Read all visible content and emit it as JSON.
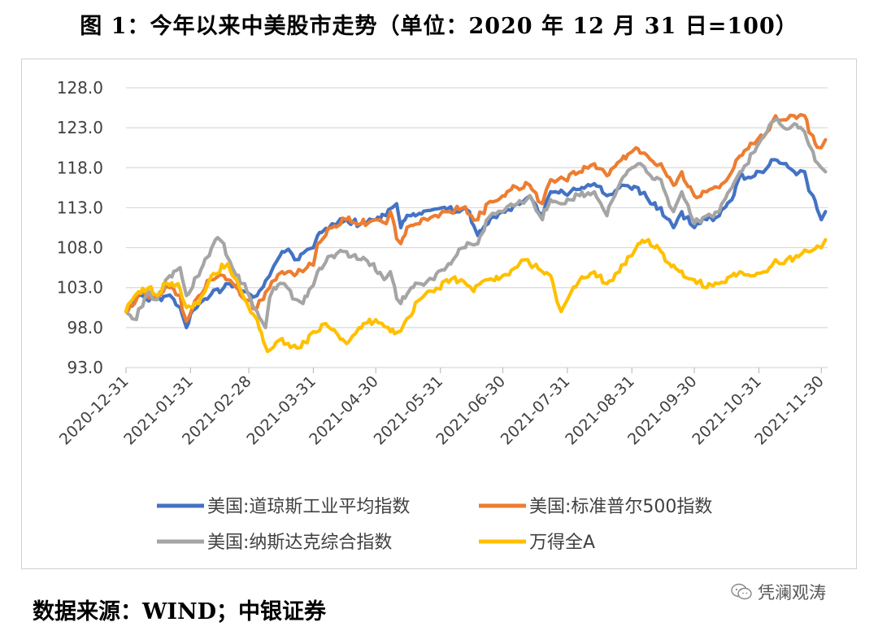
{
  "figure_title": "图 1：今年以来中美股市走势（单位：2020 年 12 月 31 日=100）",
  "source_note": "数据来源：WIND；中银证券",
  "watermark": "凭澜观涛",
  "chart_data": {
    "type": "line",
    "title": "",
    "xlabel": "",
    "ylabel": "",
    "x_ticks": [
      "2020-12-31",
      "2021-01-31",
      "2021-02-28",
      "2021-03-31",
      "2021-04-30",
      "2021-05-31",
      "2021-06-30",
      "2021-07-31",
      "2021-08-31",
      "2021-09-30",
      "2021-10-31",
      "2021-11-30"
    ],
    "y_ticks": [
      "128.0",
      "123.0",
      "118.0",
      "113.0",
      "108.0",
      "103.0",
      "98.0",
      "93.0"
    ],
    "ylim": [
      93,
      128
    ],
    "xlim": [
      "2020-12-31",
      "2021-12-03"
    ],
    "grid": "horizontal",
    "legend_position": "bottom",
    "series": [
      {
        "name": "美国:道琼斯工业平均指数",
        "color": "#4472C4",
        "points": [
          [
            "2020-12-31",
            100.0
          ],
          [
            "2021-01-06",
            102.0
          ],
          [
            "2021-01-14",
            101.5
          ],
          [
            "2021-01-20",
            102.0
          ],
          [
            "2021-01-26",
            100.5
          ],
          [
            "2021-01-29",
            98.0
          ],
          [
            "2021-02-03",
            100.5
          ],
          [
            "2021-02-10",
            102.2
          ],
          [
            "2021-02-16",
            103.0
          ],
          [
            "2021-02-22",
            103.3
          ],
          [
            "2021-02-26",
            102.5
          ],
          [
            "2021-03-04",
            102.0
          ],
          [
            "2021-03-10",
            104.5
          ],
          [
            "2021-03-15",
            107.0
          ],
          [
            "2021-03-19",
            107.8
          ],
          [
            "2021-03-24",
            106.5
          ],
          [
            "2021-03-31",
            108.0
          ],
          [
            "2021-04-02",
            109.5
          ],
          [
            "2021-04-09",
            111.0
          ],
          [
            "2021-04-16",
            111.5
          ],
          [
            "2021-04-23",
            111.0
          ],
          [
            "2021-04-30",
            111.5
          ],
          [
            "2021-05-05",
            112.0
          ],
          [
            "2021-05-10",
            113.5
          ],
          [
            "2021-05-12",
            110.5
          ],
          [
            "2021-05-17",
            112.0
          ],
          [
            "2021-05-21",
            112.3
          ],
          [
            "2021-05-28",
            112.8
          ],
          [
            "2021-06-01",
            113.0
          ],
          [
            "2021-06-08",
            112.5
          ],
          [
            "2021-06-14",
            112.5
          ],
          [
            "2021-06-18",
            109.5
          ],
          [
            "2021-06-23",
            111.0
          ],
          [
            "2021-06-30",
            112.5
          ],
          [
            "2021-07-07",
            113.5
          ],
          [
            "2021-07-13",
            114.5
          ],
          [
            "2021-07-19",
            112.0
          ],
          [
            "2021-07-23",
            115.0
          ],
          [
            "2021-07-30",
            114.7
          ],
          [
            "2021-08-06",
            115.3
          ],
          [
            "2021-08-13",
            116.0
          ],
          [
            "2021-08-19",
            114.5
          ],
          [
            "2021-08-25",
            115.5
          ],
          [
            "2021-08-31",
            115.3
          ],
          [
            "2021-09-03",
            115.5
          ],
          [
            "2021-09-09",
            113.5
          ],
          [
            "2021-09-14",
            113.0
          ],
          [
            "2021-09-20",
            110.5
          ],
          [
            "2021-09-24",
            112.5
          ],
          [
            "2021-09-30",
            110.5
          ],
          [
            "2021-10-06",
            111.5
          ],
          [
            "2021-10-12",
            112.0
          ],
          [
            "2021-10-18",
            114.0
          ],
          [
            "2021-10-22",
            117.0
          ],
          [
            "2021-10-29",
            117.0
          ],
          [
            "2021-11-04",
            118.0
          ],
          [
            "2021-11-08",
            119.0
          ],
          [
            "2021-11-12",
            118.5
          ],
          [
            "2021-11-17",
            117.5
          ],
          [
            "2021-11-22",
            117.5
          ],
          [
            "2021-11-26",
            114.5
          ],
          [
            "2021-11-30",
            111.5
          ],
          [
            "2021-12-02",
            112.5
          ]
        ]
      },
      {
        "name": "美国:标准普尔500指数",
        "color": "#ED7D31",
        "points": [
          [
            "2020-12-31",
            100.0
          ],
          [
            "2021-01-08",
            102.5
          ],
          [
            "2021-01-14",
            101.8
          ],
          [
            "2021-01-21",
            103.0
          ],
          [
            "2021-01-26",
            102.0
          ],
          [
            "2021-01-29",
            98.8
          ],
          [
            "2021-02-04",
            102.0
          ],
          [
            "2021-02-10",
            104.0
          ],
          [
            "2021-02-16",
            104.5
          ],
          [
            "2021-02-22",
            103.0
          ],
          [
            "2021-02-26",
            101.5
          ],
          [
            "2021-03-04",
            100.5
          ],
          [
            "2021-03-10",
            103.0
          ],
          [
            "2021-03-16",
            105.0
          ],
          [
            "2021-03-22",
            104.5
          ],
          [
            "2021-03-26",
            105.0
          ],
          [
            "2021-03-31",
            105.8
          ],
          [
            "2021-04-02",
            108.5
          ],
          [
            "2021-04-09",
            110.5
          ],
          [
            "2021-04-16",
            111.5
          ],
          [
            "2021-04-23",
            111.0
          ],
          [
            "2021-04-30",
            111.5
          ],
          [
            "2021-05-05",
            111.0
          ],
          [
            "2021-05-07",
            112.5
          ],
          [
            "2021-05-12",
            108.5
          ],
          [
            "2021-05-17",
            110.8
          ],
          [
            "2021-05-21",
            111.0
          ],
          [
            "2021-05-28",
            112.0
          ],
          [
            "2021-06-04",
            112.5
          ],
          [
            "2021-06-11",
            113.0
          ],
          [
            "2021-06-18",
            111.5
          ],
          [
            "2021-06-24",
            113.8
          ],
          [
            "2021-06-30",
            114.5
          ],
          [
            "2021-07-07",
            115.5
          ],
          [
            "2021-07-13",
            115.8
          ],
          [
            "2021-07-19",
            113.5
          ],
          [
            "2021-07-23",
            116.5
          ],
          [
            "2021-07-30",
            116.5
          ],
          [
            "2021-08-06",
            117.5
          ],
          [
            "2021-08-13",
            118.5
          ],
          [
            "2021-08-19",
            117.0
          ],
          [
            "2021-08-26",
            119.0
          ],
          [
            "2021-08-31",
            120.0
          ],
          [
            "2021-09-02",
            120.5
          ],
          [
            "2021-09-09",
            119.0
          ],
          [
            "2021-09-14",
            118.5
          ],
          [
            "2021-09-20",
            115.8
          ],
          [
            "2021-09-24",
            117.5
          ],
          [
            "2021-09-30",
            114.5
          ],
          [
            "2021-10-06",
            115.0
          ],
          [
            "2021-10-12",
            115.5
          ],
          [
            "2021-10-18",
            117.5
          ],
          [
            "2021-10-22",
            119.5
          ],
          [
            "2021-10-29",
            121.0
          ],
          [
            "2021-11-04",
            122.5
          ],
          [
            "2021-11-08",
            124.5
          ],
          [
            "2021-11-12",
            124.0
          ],
          [
            "2021-11-17",
            124.5
          ],
          [
            "2021-11-22",
            124.5
          ],
          [
            "2021-11-26",
            122.0
          ],
          [
            "2021-11-30",
            120.5
          ],
          [
            "2021-12-02",
            121.5
          ]
        ]
      },
      {
        "name": "美国:纳斯达克综合指数",
        "color": "#A5A5A5",
        "points": [
          [
            "2020-12-31",
            100.0
          ],
          [
            "2021-01-05",
            99.0
          ],
          [
            "2021-01-11",
            102.5
          ],
          [
            "2021-01-15",
            101.5
          ],
          [
            "2021-01-21",
            104.5
          ],
          [
            "2021-01-26",
            105.5
          ],
          [
            "2021-01-29",
            102.0
          ],
          [
            "2021-02-04",
            104.5
          ],
          [
            "2021-02-09",
            107.0
          ],
          [
            "2021-02-12",
            109.0
          ],
          [
            "2021-02-16",
            108.5
          ],
          [
            "2021-02-22",
            104.5
          ],
          [
            "2021-02-26",
            103.5
          ],
          [
            "2021-03-04",
            100.0
          ],
          [
            "2021-03-08",
            98.0
          ],
          [
            "2021-03-12",
            103.0
          ],
          [
            "2021-03-17",
            103.5
          ],
          [
            "2021-03-23",
            101.5
          ],
          [
            "2021-03-26",
            101.0
          ],
          [
            "2021-03-31",
            103.3
          ],
          [
            "2021-04-02",
            105.0
          ],
          [
            "2021-04-09",
            107.0
          ],
          [
            "2021-04-16",
            107.5
          ],
          [
            "2021-04-23",
            106.5
          ],
          [
            "2021-04-29",
            106.0
          ],
          [
            "2021-05-04",
            104.0
          ],
          [
            "2021-05-07",
            105.0
          ],
          [
            "2021-05-12",
            101.0
          ],
          [
            "2021-05-17",
            103.0
          ],
          [
            "2021-05-21",
            103.5
          ],
          [
            "2021-05-28",
            104.0
          ],
          [
            "2021-06-04",
            106.0
          ],
          [
            "2021-06-11",
            108.0
          ],
          [
            "2021-06-18",
            108.5
          ],
          [
            "2021-06-24",
            112.0
          ],
          [
            "2021-06-30",
            112.5
          ],
          [
            "2021-07-07",
            113.5
          ],
          [
            "2021-07-13",
            114.5
          ],
          [
            "2021-07-19",
            111.5
          ],
          [
            "2021-07-23",
            114.0
          ],
          [
            "2021-07-30",
            113.5
          ],
          [
            "2021-08-06",
            114.5
          ],
          [
            "2021-08-13",
            115.0
          ],
          [
            "2021-08-19",
            112.0
          ],
          [
            "2021-08-26",
            116.5
          ],
          [
            "2021-08-31",
            118.0
          ],
          [
            "2021-09-03",
            118.5
          ],
          [
            "2021-09-09",
            117.0
          ],
          [
            "2021-09-14",
            116.5
          ],
          [
            "2021-09-20",
            112.5
          ],
          [
            "2021-09-24",
            115.0
          ],
          [
            "2021-09-30",
            111.0
          ],
          [
            "2021-10-06",
            112.0
          ],
          [
            "2021-10-12",
            112.5
          ],
          [
            "2021-10-18",
            115.5
          ],
          [
            "2021-10-22",
            117.5
          ],
          [
            "2021-10-29",
            120.0
          ],
          [
            "2021-11-04",
            122.5
          ],
          [
            "2021-11-08",
            124.0
          ],
          [
            "2021-11-12",
            123.0
          ],
          [
            "2021-11-17",
            123.5
          ],
          [
            "2021-11-22",
            122.5
          ],
          [
            "2021-11-26",
            120.0
          ],
          [
            "2021-11-30",
            118.0
          ],
          [
            "2021-12-02",
            117.5
          ]
        ]
      },
      {
        "name": "万得全A",
        "color": "#FFC000",
        "points": [
          [
            "2020-12-31",
            100.0
          ],
          [
            "2021-01-06",
            102.5
          ],
          [
            "2021-01-11",
            103.0
          ],
          [
            "2021-01-15",
            102.0
          ],
          [
            "2021-01-20",
            103.5
          ],
          [
            "2021-01-25",
            103.5
          ],
          [
            "2021-01-29",
            100.5
          ],
          [
            "2021-02-04",
            101.0
          ],
          [
            "2021-02-10",
            104.5
          ],
          [
            "2021-02-18",
            106.0
          ],
          [
            "2021-02-22",
            104.0
          ],
          [
            "2021-02-26",
            101.5
          ],
          [
            "2021-03-04",
            99.0
          ],
          [
            "2021-03-09",
            95.0
          ],
          [
            "2021-03-15",
            96.5
          ],
          [
            "2021-03-19",
            96.0
          ],
          [
            "2021-03-25",
            95.5
          ],
          [
            "2021-03-31",
            97.5
          ],
          [
            "2021-04-06",
            98.5
          ],
          [
            "2021-04-12",
            97.0
          ],
          [
            "2021-04-16",
            96.0
          ],
          [
            "2021-04-22",
            98.0
          ],
          [
            "2021-04-30",
            99.0
          ],
          [
            "2021-05-06",
            98.0
          ],
          [
            "2021-05-11",
            97.5
          ],
          [
            "2021-05-17",
            99.5
          ],
          [
            "2021-05-21",
            101.5
          ],
          [
            "2021-05-28",
            102.5
          ],
          [
            "2021-06-03",
            104.0
          ],
          [
            "2021-06-10",
            104.0
          ],
          [
            "2021-06-16",
            102.5
          ],
          [
            "2021-06-22",
            104.0
          ],
          [
            "2021-06-30",
            104.5
          ],
          [
            "2021-07-06",
            105.5
          ],
          [
            "2021-07-12",
            106.5
          ],
          [
            "2021-07-19",
            105.0
          ],
          [
            "2021-07-23",
            104.5
          ],
          [
            "2021-07-28",
            100.0
          ],
          [
            "2021-07-31",
            101.5
          ],
          [
            "2021-08-06",
            104.0
          ],
          [
            "2021-08-13",
            105.0
          ],
          [
            "2021-08-19",
            103.5
          ],
          [
            "2021-08-25",
            105.0
          ],
          [
            "2021-08-31",
            107.0
          ],
          [
            "2021-09-03",
            108.5
          ],
          [
            "2021-09-08",
            109.0
          ],
          [
            "2021-09-14",
            107.5
          ],
          [
            "2021-09-18",
            106.0
          ],
          [
            "2021-09-23",
            105.0
          ],
          [
            "2021-09-30",
            104.0
          ],
          [
            "2021-10-06",
            103.0
          ],
          [
            "2021-10-12",
            103.5
          ],
          [
            "2021-10-18",
            104.5
          ],
          [
            "2021-10-22",
            105.0
          ],
          [
            "2021-10-29",
            104.5
          ],
          [
            "2021-11-04",
            105.0
          ],
          [
            "2021-11-08",
            106.5
          ],
          [
            "2021-11-12",
            106.0
          ],
          [
            "2021-11-18",
            107.0
          ],
          [
            "2021-11-24",
            107.5
          ],
          [
            "2021-11-30",
            108.0
          ],
          [
            "2021-12-02",
            109.0
          ]
        ]
      }
    ]
  }
}
